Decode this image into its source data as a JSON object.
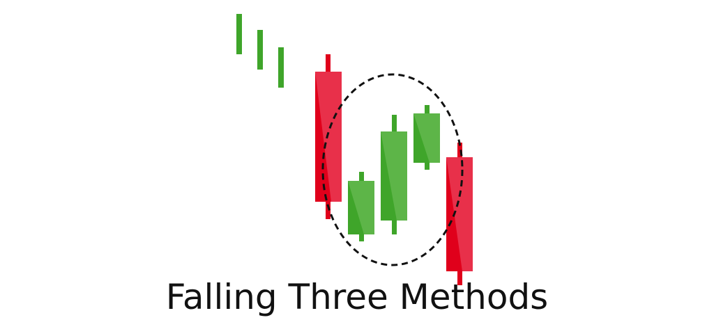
{
  "title": "Falling Three Methods"
}
